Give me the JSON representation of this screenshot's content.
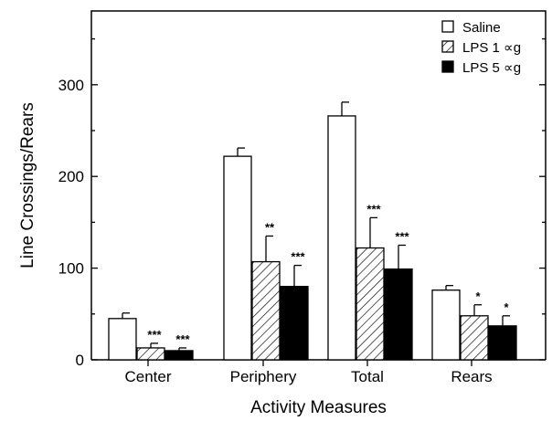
{
  "chart_data": {
    "type": "bar",
    "xlabel": "Activity Measures",
    "ylabel": "Line Crossings/Rears",
    "ylim": [
      0,
      350
    ],
    "yticks": [
      0,
      100,
      200,
      300
    ],
    "grid": false,
    "legend_position": "top-right",
    "categories": [
      "Center",
      "Periphery",
      "Total",
      "Rears"
    ],
    "series": [
      {
        "name": "Saline",
        "fill": "white",
        "values": [
          45,
          222,
          266,
          76
        ],
        "errors": [
          6,
          9,
          15,
          5
        ],
        "significance": [
          "",
          "",
          "",
          ""
        ]
      },
      {
        "name": "LPS 1 ∝g",
        "fill": "hatched",
        "values": [
          13,
          107,
          122,
          48
        ],
        "errors": [
          5,
          28,
          33,
          12
        ],
        "significance": [
          "***",
          "**",
          "***",
          "*"
        ]
      },
      {
        "name": "LPS 5 ∝g",
        "fill": "black",
        "values": [
          10,
          80,
          99,
          37
        ],
        "errors": [
          3,
          23,
          26,
          11
        ],
        "significance": [
          "***",
          "***",
          "***",
          "*"
        ]
      }
    ]
  }
}
